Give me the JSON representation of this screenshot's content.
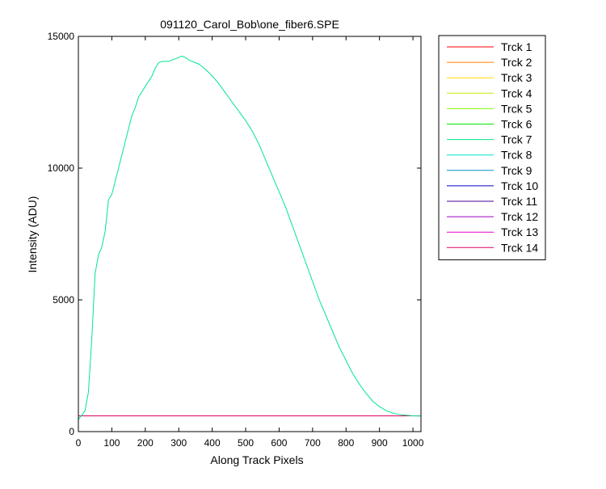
{
  "chart_data": {
    "type": "line",
    "title": "091120_Carol_Bob\\one_fiber6.SPE",
    "xlabel": "Along Track Pixels",
    "ylabel": "Intensity (ADU)",
    "xlim": [
      0,
      1024
    ],
    "ylim": [
      0,
      15000
    ],
    "xticks": [
      0,
      100,
      200,
      300,
      400,
      500,
      600,
      700,
      800,
      900,
      1000
    ],
    "yticks": [
      0,
      5000,
      10000,
      15000
    ],
    "grid": false,
    "legend_position": "outside-right",
    "series": [
      {
        "name": "Trck 1",
        "color": "#ff0000",
        "x": [
          0,
          1024
        ],
        "y": [
          600,
          600
        ]
      },
      {
        "name": "Trck 2",
        "color": "#ff7f00",
        "x": [
          0,
          1024
        ],
        "y": [
          600,
          600
        ]
      },
      {
        "name": "Trck 3",
        "color": "#ffd700",
        "x": [
          0,
          1024
        ],
        "y": [
          600,
          600
        ]
      },
      {
        "name": "Trck 4",
        "color": "#c8e600",
        "x": [
          0,
          1024
        ],
        "y": [
          600,
          600
        ]
      },
      {
        "name": "Trck 5",
        "color": "#7fff00",
        "x": [
          0,
          1024
        ],
        "y": [
          600,
          600
        ]
      },
      {
        "name": "Trck 6",
        "color": "#00e600",
        "x": [
          0,
          1024
        ],
        "y": [
          600,
          600
        ]
      },
      {
        "name": "Trck 7",
        "color": "#00e68c",
        "x": [
          0,
          5,
          10,
          20,
          30,
          40,
          50,
          60,
          70,
          80,
          90,
          100,
          110,
          120,
          130,
          140,
          150,
          160,
          170,
          180,
          190,
          200,
          210,
          220,
          230,
          240,
          250,
          260,
          270,
          280,
          290,
          300,
          310,
          320,
          330,
          340,
          350,
          360,
          370,
          380,
          400,
          420,
          440,
          460,
          480,
          500,
          520,
          540,
          560,
          580,
          600,
          620,
          640,
          660,
          680,
          700,
          720,
          740,
          760,
          780,
          800,
          820,
          840,
          860,
          880,
          900,
          920,
          940,
          960,
          980,
          1000,
          1024
        ],
        "y": [
          450,
          550,
          620,
          800,
          1500,
          3500,
          6000,
          6700,
          7000,
          7600,
          8800,
          9000,
          9500,
          10000,
          10500,
          11000,
          11500,
          12000,
          12300,
          12700,
          12900,
          13100,
          13300,
          13500,
          13800,
          14000,
          14050,
          14050,
          14050,
          14100,
          14150,
          14200,
          14250,
          14200,
          14100,
          14050,
          14000,
          13950,
          13850,
          13750,
          13500,
          13200,
          12850,
          12500,
          12150,
          11800,
          11400,
          10900,
          10300,
          9700,
          9100,
          8500,
          7800,
          7100,
          6400,
          5700,
          5000,
          4400,
          3800,
          3200,
          2700,
          2200,
          1800,
          1450,
          1150,
          950,
          800,
          700,
          650,
          620,
          600,
          590
        ]
      },
      {
        "name": "Trck 8",
        "color": "#00e6d2",
        "x": [
          0,
          1024
        ],
        "y": [
          600,
          600
        ]
      },
      {
        "name": "Trck 9",
        "color": "#0096c8",
        "x": [
          0,
          1024
        ],
        "y": [
          600,
          600
        ]
      },
      {
        "name": "Trck 10",
        "color": "#0000c8",
        "x": [
          0,
          1024
        ],
        "y": [
          600,
          600
        ]
      },
      {
        "name": "Trck 11",
        "color": "#4b0096",
        "x": [
          0,
          1024
        ],
        "y": [
          600,
          600
        ]
      },
      {
        "name": "Trck 12",
        "color": "#a000c8",
        "x": [
          0,
          1024
        ],
        "y": [
          600,
          600
        ]
      },
      {
        "name": "Trck 13",
        "color": "#e600c8",
        "x": [
          0,
          1024
        ],
        "y": [
          600,
          600
        ]
      },
      {
        "name": "Trck 14",
        "color": "#dc0064",
        "x": [
          0,
          1024
        ],
        "y": [
          600,
          600
        ]
      }
    ]
  }
}
